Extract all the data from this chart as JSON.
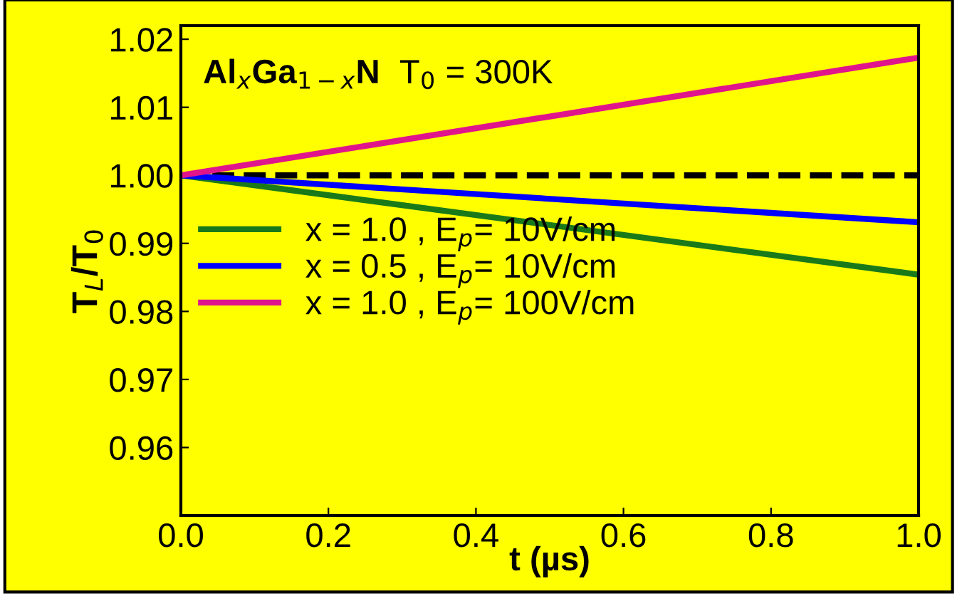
{
  "chart_data": {
    "type": "line",
    "xlabel": "t (µs)",
    "ylabel": "T$_{L}$/T$_{0}$",
    "annotations": [
      "Al$_{x}$Ga$_{1−x}$N",
      "T$_{0}$ = 300K"
    ],
    "x": [
      0.0,
      1.0
    ],
    "series": [
      {
        "name": "x = 1.0 , E$_{p}$= 10V/cm",
        "color": "#1a7a1a",
        "values": [
          1.0,
          0.9854
        ]
      },
      {
        "name": "x = 0.5 , E$_{p}$= 10V/cm",
        "color": "#0000ff",
        "values": [
          1.0,
          0.9931
        ]
      },
      {
        "name": "x = 1.0 , E$_{p}$= 100V/cm",
        "color": "#e0158c",
        "values": [
          1.0,
          1.0173
        ]
      }
    ],
    "ref_lines": [
      {
        "axis": "y",
        "value": 1.0,
        "color": "#000000",
        "line_style": "dashed"
      }
    ],
    "xlim": [
      0.0,
      1.0
    ],
    "ylim": [
      0.95,
      1.022
    ],
    "xticks": [
      {
        "value": 0.0,
        "label": "0.0"
      },
      {
        "value": 0.2,
        "label": "0.2"
      },
      {
        "value": 0.4,
        "label": "0.4"
      },
      {
        "value": 0.6,
        "label": "0.6"
      },
      {
        "value": 0.8,
        "label": "0.8"
      },
      {
        "value": 1.0,
        "label": "1.0"
      }
    ],
    "yticks": [
      {
        "value": 0.96,
        "label": "0.96"
      },
      {
        "value": 0.97,
        "label": "0.97"
      },
      {
        "value": 0.98,
        "label": "0.98"
      },
      {
        "value": 0.99,
        "label": "0.99"
      },
      {
        "value": 1.0,
        "label": "1.00"
      },
      {
        "value": 1.01,
        "label": "1.01"
      },
      {
        "value": 1.02,
        "label": "1.02"
      }
    ],
    "legend": "center left",
    "grid": false,
    "line_style": "solid",
    "marker": "none"
  }
}
